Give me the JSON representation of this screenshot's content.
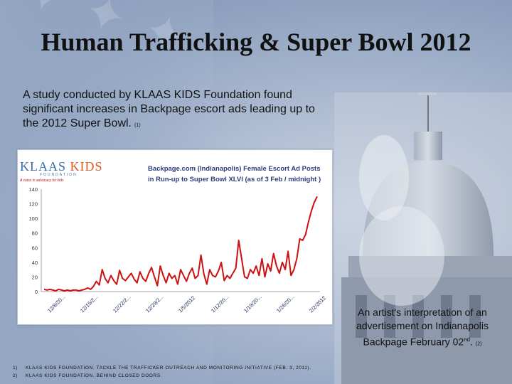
{
  "title": "Human Trafficking & Super Bowl 2012",
  "intro": {
    "text": "A study conducted by KLAAS KIDS Foundation found significant increases in Backpage escort ads leading up to the 2012 Super Bowl.",
    "ref": "(1)"
  },
  "logo": {
    "klaas": "KLAAS",
    "kids": "KIDS",
    "sub": "FOUNDATION",
    "tag": "A voice in advocacy for kids"
  },
  "chart_data": {
    "type": "line",
    "title": "Backpage.com (Indianapolis) Female Escort Ad Posts in Run-up to Super Bowl XLVI (as of 3 Feb / midnight )",
    "xlabel": "",
    "ylabel": "",
    "ylim": [
      0,
      140
    ],
    "yticks": [
      0,
      20,
      40,
      60,
      80,
      100,
      120,
      140
    ],
    "xtick_labels": [
      "12/8/20...",
      "12/15/2...",
      "12/22/2...",
      "12/29/2...",
      "1/5/2012",
      "1/12/20...",
      "1/19/20...",
      "1/26/20...",
      "2/2/2012"
    ],
    "grid": false,
    "series": [
      {
        "color": "#cc1111",
        "values": [
          3,
          2,
          3,
          2,
          1,
          3,
          2,
          1,
          2,
          1,
          2,
          2,
          1,
          2,
          3,
          5,
          3,
          7,
          14,
          9,
          30,
          18,
          12,
          22,
          15,
          10,
          29,
          18,
          15,
          20,
          25,
          17,
          12,
          27,
          18,
          14,
          25,
          33,
          20,
          8,
          35,
          22,
          12,
          25,
          18,
          22,
          10,
          30,
          22,
          14,
          25,
          32,
          18,
          22,
          50,
          24,
          10,
          30,
          22,
          20,
          28,
          40,
          15,
          22,
          18,
          25,
          32,
          70,
          45,
          20,
          18,
          30,
          25,
          35,
          22,
          45,
          20,
          38,
          28,
          52,
          35,
          25,
          40,
          30,
          55,
          22,
          30,
          45,
          72,
          70,
          78,
          95,
          110,
          122,
          130
        ]
      }
    ]
  },
  "caption": {
    "text": "An artist's interpretation of an advertisement on Indianapolis Backpage February 02",
    "sup": "nd",
    "after": ".",
    "ref": "(2)"
  },
  "notes": [
    {
      "num": "1)",
      "text": "KLAAS KIDS FOUNDATION. TACKLE THE TRAFFICKER OUTREACH AND MONITORING INITIATIVE (FEB. 3, 2011)."
    },
    {
      "num": "2)",
      "text": "KLAAS KIDS FOUNDATION. BEHIND CLOSED DOORS."
    }
  ]
}
